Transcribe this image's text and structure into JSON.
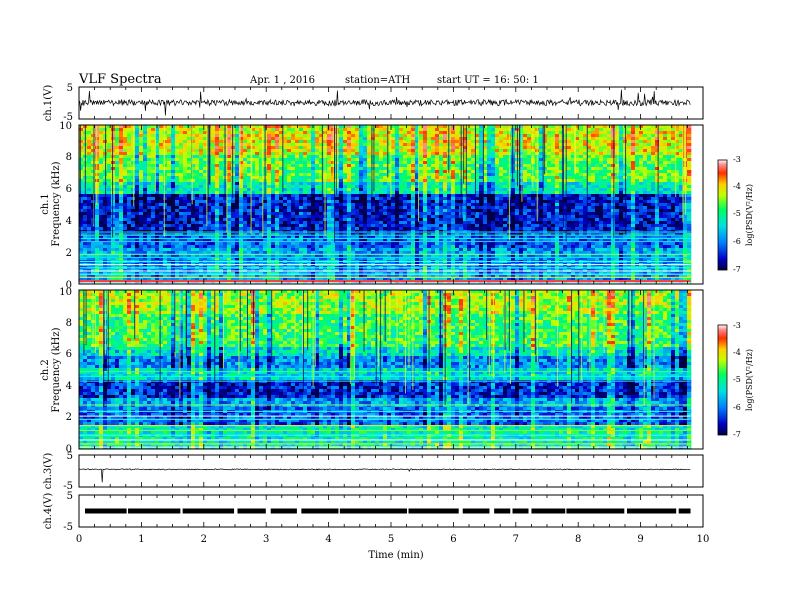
{
  "header": {
    "title": "VLF  Spectra",
    "date": "Apr. 1  , 2016",
    "station": "station=ATH",
    "start": "start  UT  =   16: 50: 1"
  },
  "chart_data": [
    {
      "type": "line",
      "panel": "ch1-waveform",
      "ylabel": "ch.1(V)",
      "ylim": [
        -5,
        5
      ],
      "y_ticks": [
        "5",
        "-5"
      ],
      "baseline_v": 0.1
    },
    {
      "type": "heatmap",
      "panel": "ch1-spectrogram",
      "ylabel_line1": "ch.1",
      "ylabel_line2": "Frequency  (kHz)",
      "ylim": [
        0,
        10
      ],
      "y_ticks": [
        "0",
        "2",
        "4",
        "6",
        "8",
        "10"
      ],
      "colorbar": {
        "label": "log(PSD(V²/Hz)",
        "range": [
          -7,
          -3
        ],
        "ticks": [
          "-3",
          "-4",
          "-5",
          "-6",
          "-7"
        ]
      }
    },
    {
      "type": "heatmap",
      "panel": "ch2-spectrogram",
      "ylabel_line1": "ch.2",
      "ylabel_line2": "Frequency  (kHz)",
      "ylim": [
        0,
        10
      ],
      "y_ticks": [
        "0",
        "2",
        "4",
        "6",
        "8",
        "10"
      ],
      "colorbar": {
        "label": "log(PSD(V²/Hz)",
        "range": [
          -7,
          -3
        ],
        "ticks": [
          "-3",
          "-4",
          "-5",
          "-6",
          "-7"
        ]
      }
    },
    {
      "type": "line",
      "panel": "ch3-waveform",
      "ylabel": "ch.3(V)",
      "ylim": [
        -5,
        5
      ],
      "y_ticks": [
        "5",
        "-5"
      ],
      "baseline_v": 0.0
    },
    {
      "type": "line",
      "panel": "ch4-waveform",
      "ylabel": "ch.4(V)",
      "ylim": [
        -5,
        5
      ],
      "y_ticks": [
        "5",
        "-5"
      ],
      "baseline_v": 0.0
    }
  ],
  "x_axis": {
    "label": "Time  (min)",
    "xlim": [
      0,
      10
    ],
    "ticks": [
      "0",
      "1",
      "2",
      "3",
      "4",
      "5",
      "6",
      "7",
      "8",
      "9",
      "10"
    ],
    "data_end_min": 9.8
  },
  "colors": {
    "axis": "#000000",
    "trace": "#000000",
    "colormap": [
      "#000080",
      "#0000ff",
      "#00c0ff",
      "#00ff80",
      "#ffff00",
      "#ff8000",
      "#ff0000",
      "#ffffff"
    ]
  }
}
